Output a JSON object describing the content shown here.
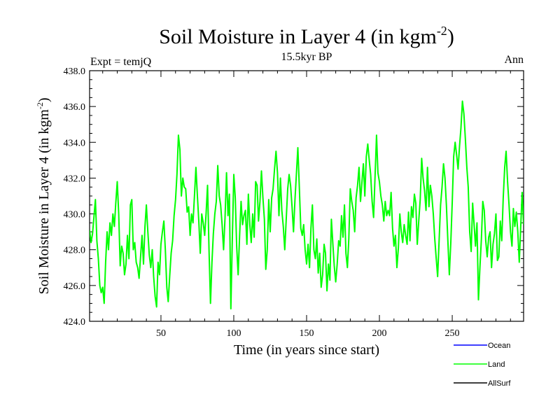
{
  "chart_data": {
    "type": "line",
    "title": "Soil Moisture in Layer 4 (in kgm",
    "title_sup": "-2",
    "title_end": ")",
    "subtitle_left": "Expt = temjQ",
    "subtitle_center": "15.5kyr BP",
    "subtitle_right": "Ann",
    "xlabel": "Time (in years since start)",
    "ylabel": "Soil Moisture in Layer 4 (in kgm",
    "ylabel_sup": "-2",
    "ylabel_end": ")",
    "xlim": [
      1,
      299
    ],
    "ylim": [
      424.0,
      438.0
    ],
    "x_ticks": [
      50,
      100,
      150,
      200,
      250
    ],
    "x_tick_labels": [
      "50",
      "100",
      "150",
      "200",
      "250"
    ],
    "y_ticks": [
      424,
      426,
      428,
      430,
      432,
      434,
      436,
      438
    ],
    "y_tick_labels": [
      "424.0",
      "426.0",
      "428.0",
      "430.0",
      "432.0",
      "434.0",
      "436.0",
      "438.0"
    ],
    "legend": [
      {
        "name": "Ocean",
        "color": "#0000ff"
      },
      {
        "name": "Land",
        "color": "#00ff00"
      },
      {
        "name": "AllSurf",
        "color": "#000000"
      }
    ],
    "series": [
      {
        "name": "Land",
        "color": "#00ff00",
        "keypoints": [
          [
            1,
            429.1
          ],
          [
            2,
            428.4
          ],
          [
            3,
            428.9
          ],
          [
            5,
            430.8
          ],
          [
            6,
            428.5
          ],
          [
            7,
            427.5
          ],
          [
            8,
            426.0
          ],
          [
            9,
            425.6
          ],
          [
            10,
            425.9
          ],
          [
            11,
            425.0
          ],
          [
            12,
            427.3
          ],
          [
            13,
            429.0
          ],
          [
            14,
            428.0
          ],
          [
            15,
            429.5
          ],
          [
            16,
            428.8
          ],
          [
            17,
            430.0
          ],
          [
            18,
            429.3
          ],
          [
            19,
            430.6
          ],
          [
            20,
            431.8
          ],
          [
            21,
            430.0
          ],
          [
            22,
            427.1
          ],
          [
            23,
            428.2
          ],
          [
            24,
            427.8
          ],
          [
            25,
            426.6
          ],
          [
            26,
            427.2
          ],
          [
            27,
            428.8
          ],
          [
            28,
            427.5
          ],
          [
            29,
            430.5
          ],
          [
            30,
            430.8
          ],
          [
            31,
            428.0
          ],
          [
            32,
            428.4
          ],
          [
            33,
            427.3
          ],
          [
            34,
            427.0
          ],
          [
            35,
            426.4
          ],
          [
            36,
            427.6
          ],
          [
            37,
            428.8
          ],
          [
            38,
            427.2
          ],
          [
            39,
            429.3
          ],
          [
            40,
            430.5
          ],
          [
            41,
            429.0
          ],
          [
            42,
            427.7
          ],
          [
            43,
            427.0
          ],
          [
            44,
            428.0
          ],
          [
            45,
            426.5
          ],
          [
            46,
            425.4
          ],
          [
            47,
            424.8
          ],
          [
            48,
            427.3
          ],
          [
            49,
            426.6
          ],
          [
            50,
            428.3
          ],
          [
            51,
            429.0
          ],
          [
            52,
            429.6
          ],
          [
            53,
            428.0
          ],
          [
            54,
            425.9
          ],
          [
            55,
            425.1
          ],
          [
            56,
            426.5
          ],
          [
            57,
            427.8
          ],
          [
            58,
            428.5
          ],
          [
            59,
            429.9
          ],
          [
            60,
            430.8
          ],
          [
            61,
            432.2
          ],
          [
            62,
            434.4
          ],
          [
            63,
            433.6
          ],
          [
            64,
            431.0
          ],
          [
            65,
            432.0
          ],
          [
            66,
            431.5
          ],
          [
            67,
            431.4
          ],
          [
            68,
            430.1
          ],
          [
            69,
            430.4
          ],
          [
            70,
            428.8
          ],
          [
            71,
            430.0
          ],
          [
            72,
            429.5
          ],
          [
            73,
            431.0
          ],
          [
            74,
            432.6
          ],
          [
            75,
            431.0
          ],
          [
            76,
            429.6
          ],
          [
            77,
            427.8
          ],
          [
            78,
            430.0
          ],
          [
            79,
            429.5
          ],
          [
            80,
            428.8
          ],
          [
            81,
            430.0
          ],
          [
            82,
            431.6
          ],
          [
            83,
            428.0
          ],
          [
            84,
            425.0
          ],
          [
            85,
            427.3
          ],
          [
            86,
            428.9
          ],
          [
            87,
            430.0
          ],
          [
            88,
            430.7
          ],
          [
            89,
            432.7
          ],
          [
            90,
            431.0
          ],
          [
            91,
            430.5
          ],
          [
            92,
            429.4
          ],
          [
            93,
            428.0
          ],
          [
            94,
            429.8
          ],
          [
            95,
            432.3
          ],
          [
            96,
            429.9
          ],
          [
            97,
            431.1
          ],
          [
            98,
            424.7
          ],
          [
            99,
            428.6
          ],
          [
            100,
            432.2
          ],
          [
            101,
            430.9
          ],
          [
            102,
            428.2
          ],
          [
            103,
            426.6
          ],
          [
            104,
            428.8
          ],
          [
            105,
            430.7
          ],
          [
            106,
            429.4
          ],
          [
            107,
            429.9
          ],
          [
            108,
            430.2
          ],
          [
            109,
            428.3
          ],
          [
            110,
            431.1
          ],
          [
            111,
            429.4
          ],
          [
            112,
            428.4
          ],
          [
            113,
            430.0
          ],
          [
            114,
            428.7
          ],
          [
            115,
            431.8
          ],
          [
            116,
            431.6
          ],
          [
            117,
            429.6
          ],
          [
            118,
            430.7
          ],
          [
            119,
            432.4
          ],
          [
            120,
            430.9
          ],
          [
            121,
            429.7
          ],
          [
            122,
            426.9
          ],
          [
            123,
            428.0
          ],
          [
            124,
            430.8
          ],
          [
            125,
            429.0
          ],
          [
            126,
            430.9
          ],
          [
            127,
            431.4
          ],
          [
            128,
            432.5
          ],
          [
            129,
            433.5
          ],
          [
            130,
            432.3
          ],
          [
            131,
            429.9
          ],
          [
            132,
            432.0
          ],
          [
            133,
            430.2
          ],
          [
            134,
            429.3
          ],
          [
            135,
            428.0
          ],
          [
            136,
            429.7
          ],
          [
            137,
            431.4
          ],
          [
            138,
            432.2
          ],
          [
            139,
            431.6
          ],
          [
            140,
            430.4
          ],
          [
            141,
            429.0
          ],
          [
            142,
            430.8
          ],
          [
            143,
            432.2
          ],
          [
            144,
            433.7
          ],
          [
            145,
            431.5
          ],
          [
            146,
            429.2
          ],
          [
            147,
            428.8
          ],
          [
            148,
            429.4
          ],
          [
            149,
            428.0
          ],
          [
            150,
            427.2
          ],
          [
            151,
            428.3
          ],
          [
            152,
            427.0
          ],
          [
            153,
            429.2
          ],
          [
            154,
            430.5
          ],
          [
            155,
            428.0
          ],
          [
            156,
            427.5
          ],
          [
            157,
            428.6
          ],
          [
            158,
            426.7
          ],
          [
            159,
            427.8
          ],
          [
            160,
            425.9
          ],
          [
            161,
            426.6
          ],
          [
            162,
            428.3
          ],
          [
            163,
            427.8
          ],
          [
            164,
            425.7
          ],
          [
            165,
            427.2
          ],
          [
            166,
            426.3
          ],
          [
            167,
            429.7
          ],
          [
            168,
            428.4
          ],
          [
            169,
            427.1
          ],
          [
            170,
            426.2
          ],
          [
            171,
            427.2
          ],
          [
            172,
            428.5
          ],
          [
            173,
            428.2
          ],
          [
            174,
            429.9
          ],
          [
            175,
            428.7
          ],
          [
            176,
            430.5
          ],
          [
            177,
            427.8
          ],
          [
            178,
            427.0
          ],
          [
            179,
            428.6
          ],
          [
            180,
            431.4
          ],
          [
            181,
            430.7
          ],
          [
            182,
            430.2
          ],
          [
            183,
            429.0
          ],
          [
            184,
            430.9
          ],
          [
            185,
            431.6
          ],
          [
            186,
            432.6
          ],
          [
            187,
            430.7
          ],
          [
            188,
            431.8
          ],
          [
            189,
            432.8
          ],
          [
            190,
            431.0
          ],
          [
            191,
            433.2
          ],
          [
            192,
            433.9
          ],
          [
            193,
            433.0
          ],
          [
            194,
            432.2
          ],
          [
            195,
            430.7
          ],
          [
            196,
            429.8
          ],
          [
            197,
            432.1
          ],
          [
            198,
            434.4
          ],
          [
            199,
            432.3
          ],
          [
            200,
            431.8
          ],
          [
            201,
            431.0
          ],
          [
            202,
            430.5
          ],
          [
            203,
            429.6
          ],
          [
            204,
            430.7
          ],
          [
            205,
            429.9
          ],
          [
            206,
            430.2
          ],
          [
            207,
            429.9
          ],
          [
            208,
            431.2
          ],
          [
            209,
            429.2
          ],
          [
            210,
            428.2
          ],
          [
            211,
            428.8
          ],
          [
            212,
            427.0
          ],
          [
            213,
            428.1
          ],
          [
            214,
            430.0
          ],
          [
            215,
            429.0
          ],
          [
            216,
            428.4
          ],
          [
            217,
            429.4
          ],
          [
            218,
            428.8
          ],
          [
            219,
            428.3
          ],
          [
            220,
            430.1
          ],
          [
            221,
            428.5
          ],
          [
            222,
            430.4
          ],
          [
            223,
            429.8
          ],
          [
            224,
            431.1
          ],
          [
            225,
            430.6
          ],
          [
            226,
            428.3
          ],
          [
            227,
            429.6
          ],
          [
            228,
            430.8
          ],
          [
            229,
            433.1
          ],
          [
            230,
            432.0
          ],
          [
            231,
            431.3
          ],
          [
            232,
            430.2
          ],
          [
            233,
            432.6
          ],
          [
            234,
            430.4
          ],
          [
            235,
            431.6
          ],
          [
            236,
            431.0
          ],
          [
            237,
            430.0
          ],
          [
            238,
            428.6
          ],
          [
            239,
            427.5
          ],
          [
            240,
            426.5
          ],
          [
            241,
            428.5
          ],
          [
            242,
            430.5
          ],
          [
            243,
            431.5
          ],
          [
            244,
            432.8
          ],
          [
            245,
            432.0
          ],
          [
            246,
            430.5
          ],
          [
            247,
            428.5
          ],
          [
            248,
            426.6
          ],
          [
            249,
            428.4
          ],
          [
            250,
            430.7
          ],
          [
            251,
            433.2
          ],
          [
            252,
            434.0
          ],
          [
            253,
            433.3
          ],
          [
            254,
            432.5
          ],
          [
            255,
            433.8
          ],
          [
            256,
            434.8
          ],
          [
            257,
            436.3
          ],
          [
            258,
            435.6
          ],
          [
            259,
            434.2
          ],
          [
            260,
            432.6
          ],
          [
            261,
            431.5
          ],
          [
            262,
            429.0
          ],
          [
            263,
            427.9
          ],
          [
            264,
            430.6
          ],
          [
            265,
            429.4
          ],
          [
            266,
            428.2
          ],
          [
            267,
            429.5
          ],
          [
            268,
            425.2
          ],
          [
            269,
            427.0
          ],
          [
            270,
            428.6
          ],
          [
            271,
            430.7
          ],
          [
            272,
            430.2
          ],
          [
            273,
            428.5
          ],
          [
            274,
            427.6
          ],
          [
            275,
            428.7
          ],
          [
            276,
            429.0
          ],
          [
            277,
            427.0
          ],
          [
            278,
            428.3
          ],
          [
            279,
            428.9
          ],
          [
            280,
            430.0
          ],
          [
            281,
            427.4
          ],
          [
            282,
            427.6
          ],
          [
            283,
            429.6
          ],
          [
            284,
            428.5
          ],
          [
            285,
            430.9
          ],
          [
            286,
            432.6
          ],
          [
            287,
            433.5
          ],
          [
            288,
            431.8
          ],
          [
            289,
            430.5
          ],
          [
            290,
            429.0
          ],
          [
            291,
            428.2
          ],
          [
            292,
            430.3
          ],
          [
            293,
            429.3
          ],
          [
            294,
            430.1
          ],
          [
            295,
            429.0
          ],
          [
            296,
            427.3
          ],
          [
            297,
            429.2
          ],
          [
            298,
            431.2
          ],
          [
            299,
            429.4
          ]
        ]
      }
    ]
  }
}
